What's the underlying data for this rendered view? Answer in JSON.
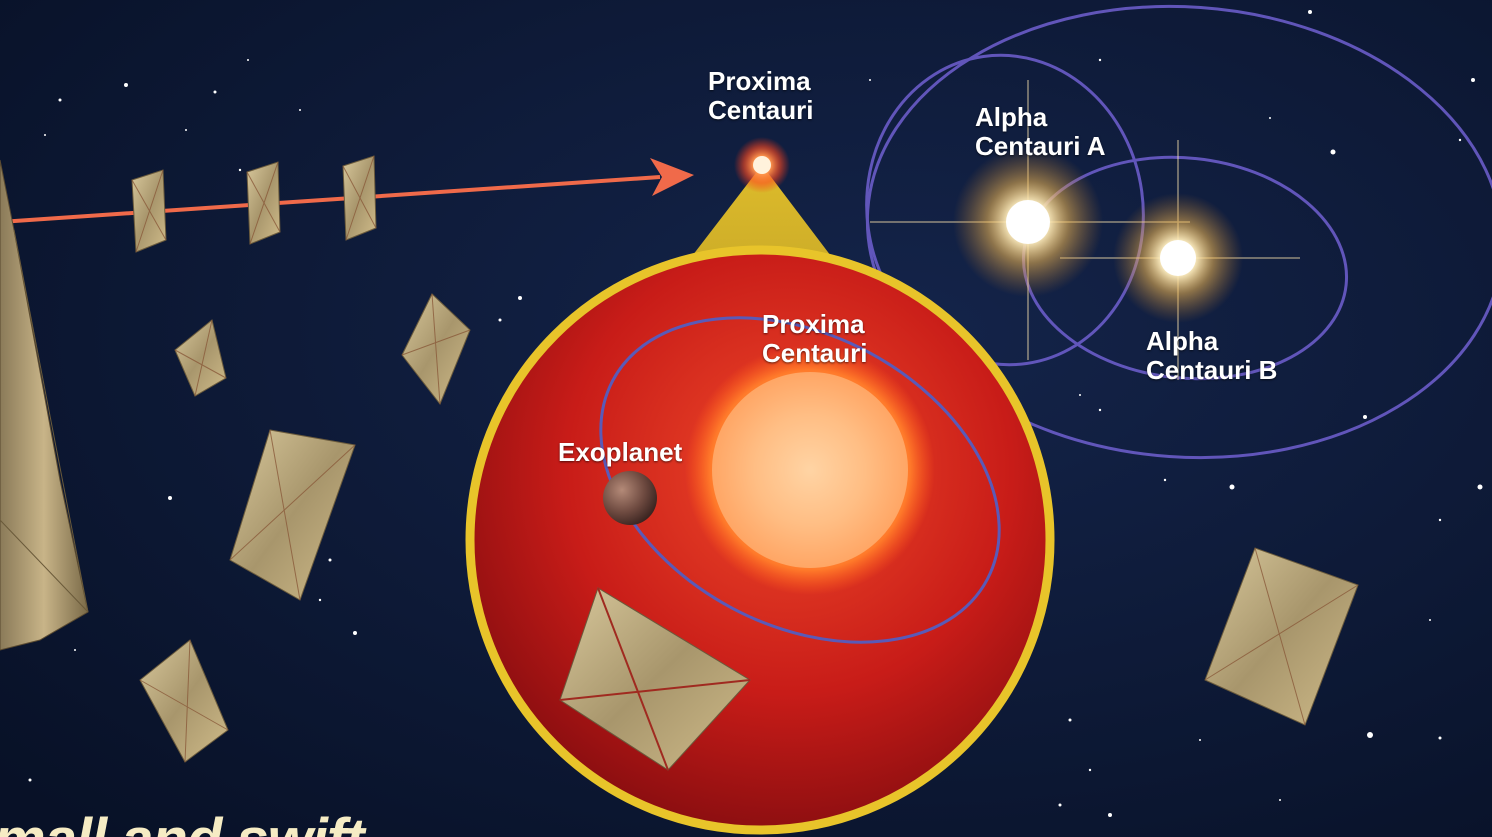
{
  "labels": {
    "proxima_top": "Proxima\nCentauri",
    "alpha_a": "Alpha\nCentauri A",
    "alpha_b": "Alpha\nCentauri B",
    "proxima_inset": "Proxima\nCentauri",
    "exoplanet": "Exoplanet"
  },
  "caption": "mall and swift",
  "colors": {
    "space": "#0b1630",
    "orbit": "#6a5cc8",
    "arrow": "#f06a4a",
    "inset_ring": "#e8c42a",
    "red_dwarf": "#d8281e",
    "sail": "#b8a67c",
    "caption": "#f6ecc4"
  },
  "icons": [
    "light-sail-icon",
    "star-glow-icon",
    "exoplanet-icon"
  ]
}
